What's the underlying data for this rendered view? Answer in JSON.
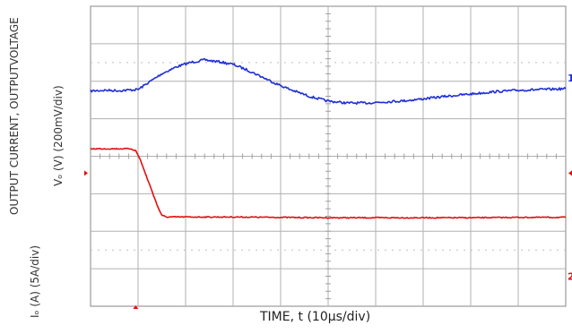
{
  "axis_labels": {
    "y_upper_line1": "OUTPUT CURRENT, OUTPUTVOLTAGE",
    "y_upper_line2": "Vₒ (V) (200mV/div)",
    "y_lower_line2": "Iₒ (A) (5A/div)",
    "x": "TIME, t (10μs/div)"
  },
  "chart_data": {
    "type": "line",
    "title": "",
    "xlabel": "TIME, t (10μs/div)",
    "ylabel": "OUTPUT CURRENT, OUTPUTVOLTAGE Vₒ (V) (200mV/div) Iₒ (A) (5A/div)",
    "x_unit": "div",
    "y_unit": "div",
    "xlim": [
      0,
      10
    ],
    "ylim": [
      0,
      8
    ],
    "grid": true,
    "series": [
      {
        "name": "",
        "color": "#1f2fd6",
        "marker": "1",
        "x": [
          0,
          0.3,
          0.6,
          1.0,
          1.2,
          1.5,
          1.8,
          2.1,
          2.4,
          2.7,
          3.0,
          3.3,
          3.6,
          3.9,
          4.2,
          4.6,
          5.0,
          5.4,
          5.8,
          6.2,
          6.6,
          7.0,
          7.5,
          8.0,
          8.5,
          9.0,
          9.5,
          10.0
        ],
        "y": [
          5.74,
          5.76,
          5.75,
          5.78,
          5.95,
          6.2,
          6.38,
          6.5,
          6.57,
          6.52,
          6.45,
          6.3,
          6.12,
          5.94,
          5.78,
          5.6,
          5.47,
          5.42,
          5.42,
          5.45,
          5.48,
          5.53,
          5.6,
          5.66,
          5.72,
          5.76,
          5.78,
          5.8
        ]
      },
      {
        "name": "",
        "color": "#e01010",
        "marker": "2",
        "x": [
          0,
          0.5,
          0.85,
          0.95,
          1.05,
          1.15,
          1.3,
          1.4,
          1.5,
          1.6,
          2.0,
          3.0,
          4.0,
          5.0,
          6.0,
          7.0,
          8.0,
          9.0,
          10.0
        ],
        "y": [
          4.2,
          4.2,
          4.2,
          4.15,
          3.9,
          3.55,
          3.05,
          2.7,
          2.42,
          2.38,
          2.38,
          2.38,
          2.37,
          2.36,
          2.36,
          2.36,
          2.36,
          2.37,
          2.37
        ]
      }
    ]
  }
}
